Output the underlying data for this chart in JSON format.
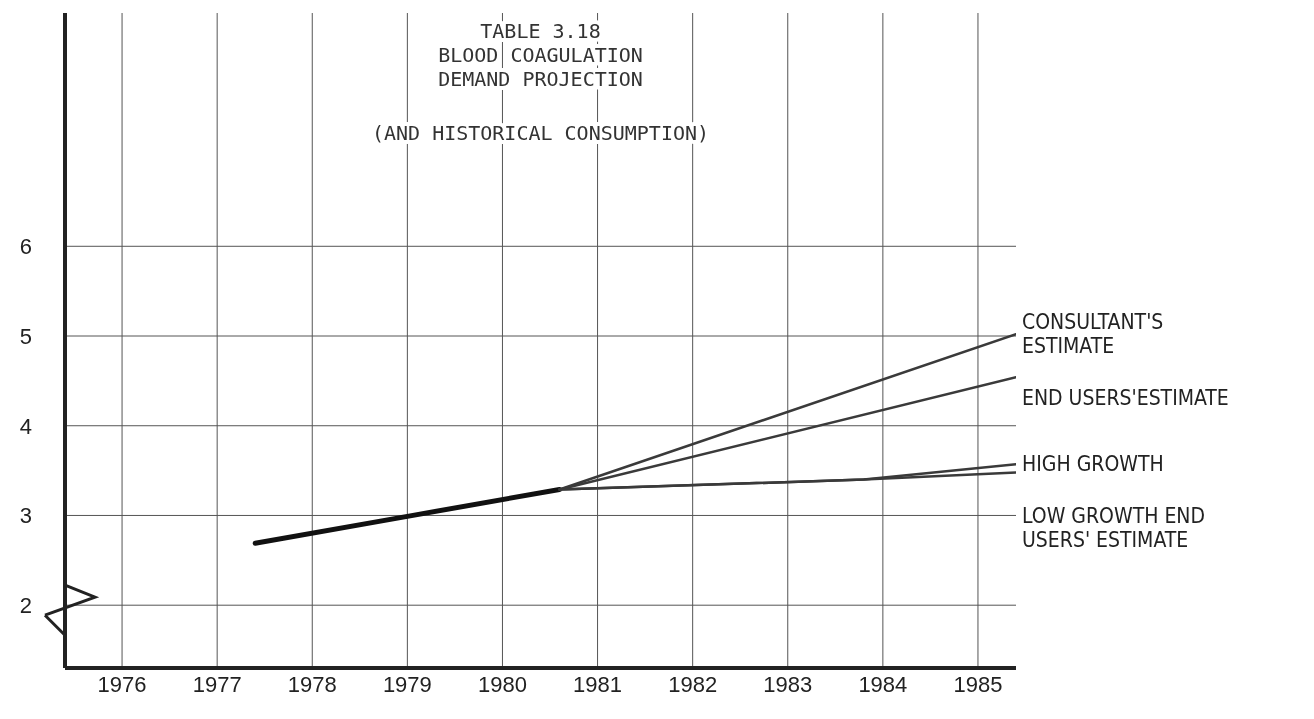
{
  "chart_data": {
    "type": "line",
    "title": "TABLE 3.18\nBLOOD COAGULATION\nDEMAND PROJECTION",
    "subtitle": "(AND HISTORICAL CONSUMPTION)",
    "xlim": [
      1975.4,
      1985.4
    ],
    "xticks": [
      1976,
      1977,
      1978,
      1979,
      1980,
      1981,
      1982,
      1983,
      1984,
      1985
    ],
    "ylim": [
      1.3,
      8.6
    ],
    "yticks": [
      2,
      3,
      4,
      5,
      6
    ],
    "grid": true,
    "legend": false,
    "marker": "none",
    "line_style": "solid",
    "series": [
      {
        "color": "#111111",
        "x": [
          1977.4,
          1979,
          1980.6
        ],
        "values": [
          2.69,
          2.99,
          3.29
        ]
      },
      {
        "name": "CONSULTANT'S ESTIMATE",
        "color": "#3a3a3a",
        "x": [
          1980.6,
          1985.4
        ],
        "values": [
          3.29,
          5.02
        ]
      },
      {
        "name": "END USERS'ESTIMATE",
        "color": "#3a3a3a",
        "x": [
          1980.6,
          1985.4
        ],
        "values": [
          3.29,
          4.54
        ]
      },
      {
        "name": "HIGH GROWTH",
        "color": "#3a3a3a",
        "x": [
          1980.6,
          1983.8,
          1985.4
        ],
        "values": [
          3.29,
          3.4,
          3.57
        ]
      },
      {
        "name": "LOW GROWTH END USERS' ESTIMATE",
        "color": "#3a3a3a",
        "x": [
          1980.6,
          1983.8,
          1985.4
        ],
        "values": [
          3.29,
          3.4,
          3.48
        ]
      }
    ]
  }
}
